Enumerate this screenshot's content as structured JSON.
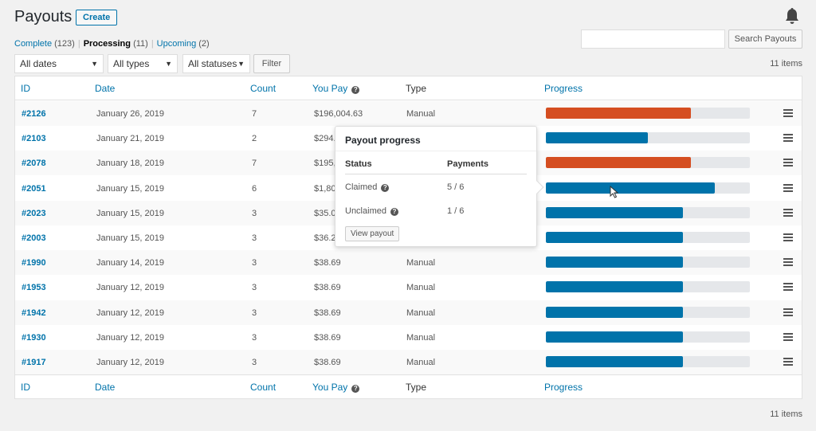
{
  "header": {
    "title": "Payouts",
    "create_label": "Create"
  },
  "views": [
    {
      "label": "Complete",
      "count": "(123)"
    },
    {
      "label": "Processing",
      "count": "(11)"
    },
    {
      "label": "Upcoming",
      "count": "(2)"
    }
  ],
  "search": {
    "value": "",
    "button_label": "Search Payouts"
  },
  "filters": {
    "dates": "All dates",
    "types": "All types",
    "statuses": "All statuses",
    "filter_label": "Filter"
  },
  "items_count": "11 items",
  "columns": {
    "id": "ID",
    "date": "Date",
    "count": "Count",
    "you_pay": "You Pay",
    "type": "Type",
    "progress": "Progress"
  },
  "colors": {
    "accent": "#0073aa",
    "progress_blue": "#0073aa",
    "progress_red": "#d54e21"
  },
  "rows": [
    {
      "id": "#2126",
      "date": "January 26, 2019",
      "count": "7",
      "pay": "$196,004.63",
      "type": "Manual",
      "progress": 0.71,
      "color": "#d54e21"
    },
    {
      "id": "#2103",
      "date": "January 21, 2019",
      "count": "2",
      "pay": "$294.",
      "type": "",
      "progress": 0.5,
      "color": "#0073aa"
    },
    {
      "id": "#2078",
      "date": "January 18, 2019",
      "count": "7",
      "pay": "$195,",
      "type": "",
      "progress": 0.71,
      "color": "#d54e21"
    },
    {
      "id": "#2051",
      "date": "January 15, 2019",
      "count": "6",
      "pay": "$1,80",
      "type": "",
      "progress": 0.83,
      "color": "#0073aa"
    },
    {
      "id": "#2023",
      "date": "January 15, 2019",
      "count": "3",
      "pay": "$35.0",
      "type": "",
      "progress": 0.67,
      "color": "#0073aa"
    },
    {
      "id": "#2003",
      "date": "January 15, 2019",
      "count": "3",
      "pay": "$36.2",
      "type": "",
      "progress": 0.67,
      "color": "#0073aa"
    },
    {
      "id": "#1990",
      "date": "January 14, 2019",
      "count": "3",
      "pay": "$38.69",
      "type": "Manual",
      "progress": 0.67,
      "color": "#0073aa"
    },
    {
      "id": "#1953",
      "date": "January 12, 2019",
      "count": "3",
      "pay": "$38.69",
      "type": "Manual",
      "progress": 0.67,
      "color": "#0073aa"
    },
    {
      "id": "#1942",
      "date": "January 12, 2019",
      "count": "3",
      "pay": "$38.69",
      "type": "Manual",
      "progress": 0.67,
      "color": "#0073aa"
    },
    {
      "id": "#1930",
      "date": "January 12, 2019",
      "count": "3",
      "pay": "$38.69",
      "type": "Manual",
      "progress": 0.67,
      "color": "#0073aa"
    },
    {
      "id": "#1917",
      "date": "January 12, 2019",
      "count": "3",
      "pay": "$38.69",
      "type": "Manual",
      "progress": 0.67,
      "color": "#0073aa"
    }
  ],
  "popover": {
    "title": "Payout progress",
    "status_header": "Status",
    "payments_header": "Payments",
    "rows": [
      {
        "status": "Claimed",
        "payments": "5 / 6"
      },
      {
        "status": "Unclaimed",
        "payments": "1 / 6"
      }
    ],
    "button_label": "View payout"
  },
  "icons": {
    "bell": "bell-icon",
    "help": "help-icon",
    "row_menu": "menu-icon",
    "caret": "chevron-down-icon"
  }
}
